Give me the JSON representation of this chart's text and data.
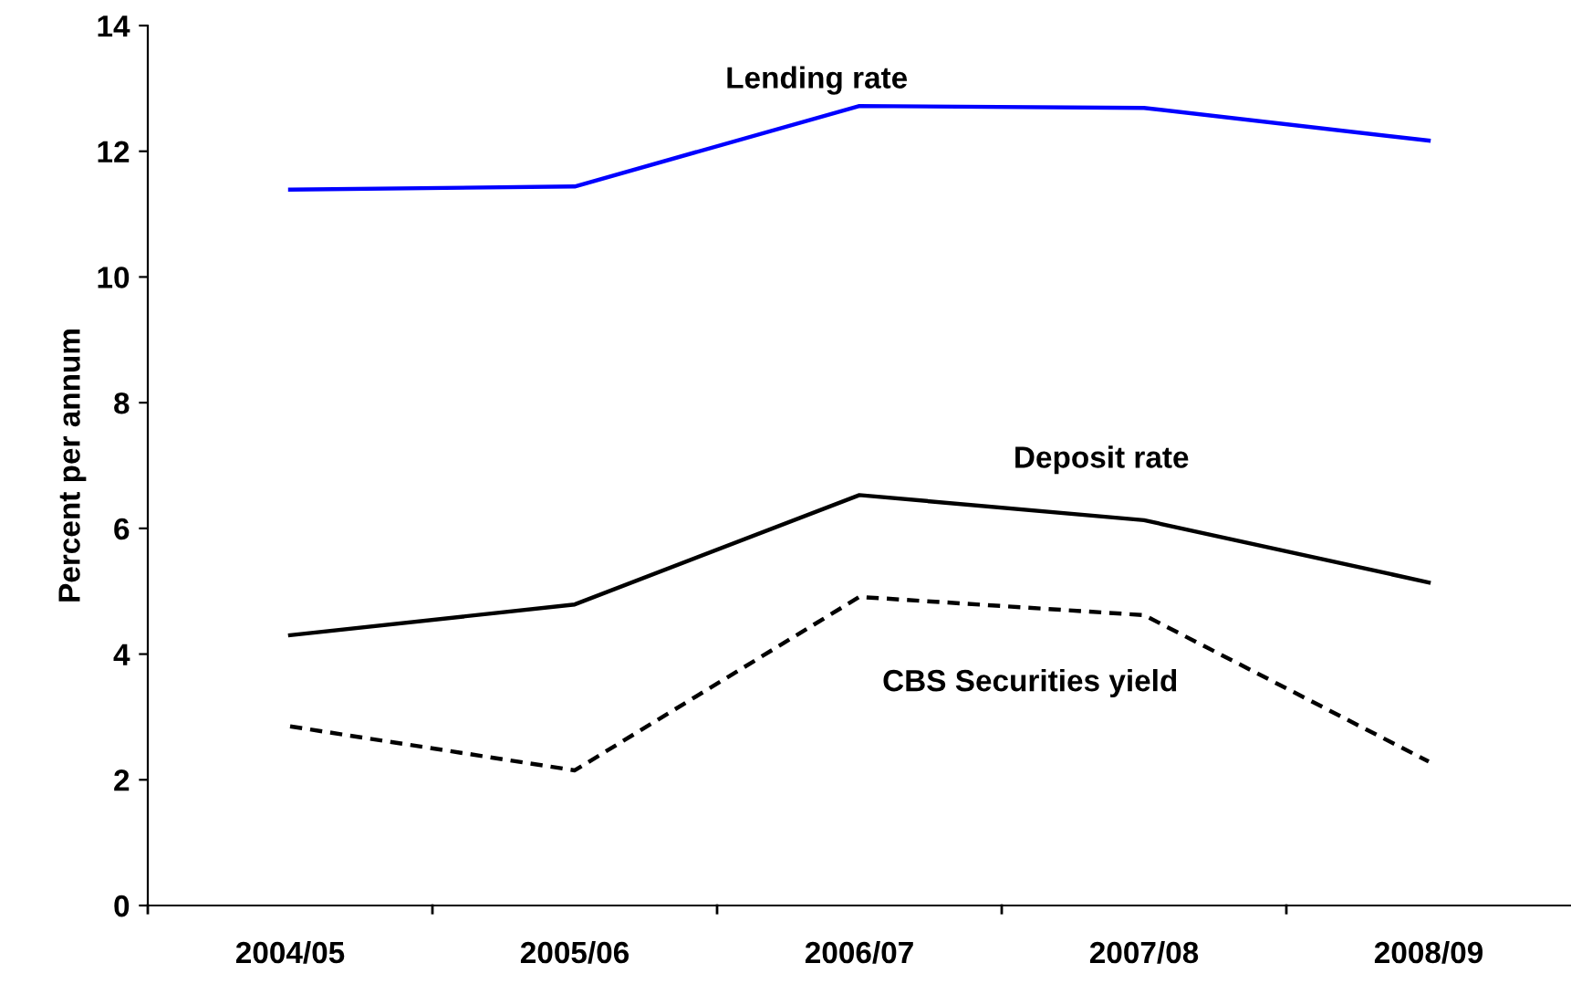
{
  "chart_data": {
    "type": "line",
    "ylabel": "Percent per annum",
    "categories": [
      "2004/05",
      "2005/06",
      "2006/07",
      "2007/08",
      "2008/09"
    ],
    "series": [
      {
        "name": "Lending rate",
        "color": "#0000ff",
        "values": [
          11.39,
          11.44,
          12.72,
          12.69,
          12.17
        ],
        "line_style": "solid"
      },
      {
        "name": "Deposit rate",
        "color": "#000000",
        "values": [
          4.3,
          4.79,
          6.53,
          6.13,
          5.14
        ],
        "line_style": "solid"
      },
      {
        "name": "CBS Securities yield",
        "color": "#000000",
        "values": [
          2.85,
          2.15,
          4.91,
          4.62,
          2.29
        ],
        "line_style": "dashed"
      }
    ],
    "ylim": [
      0,
      14
    ],
    "yticks": [
      0,
      2,
      4,
      6,
      8,
      10,
      12,
      14
    ],
    "grid": false,
    "legend": false,
    "marker": "none"
  }
}
